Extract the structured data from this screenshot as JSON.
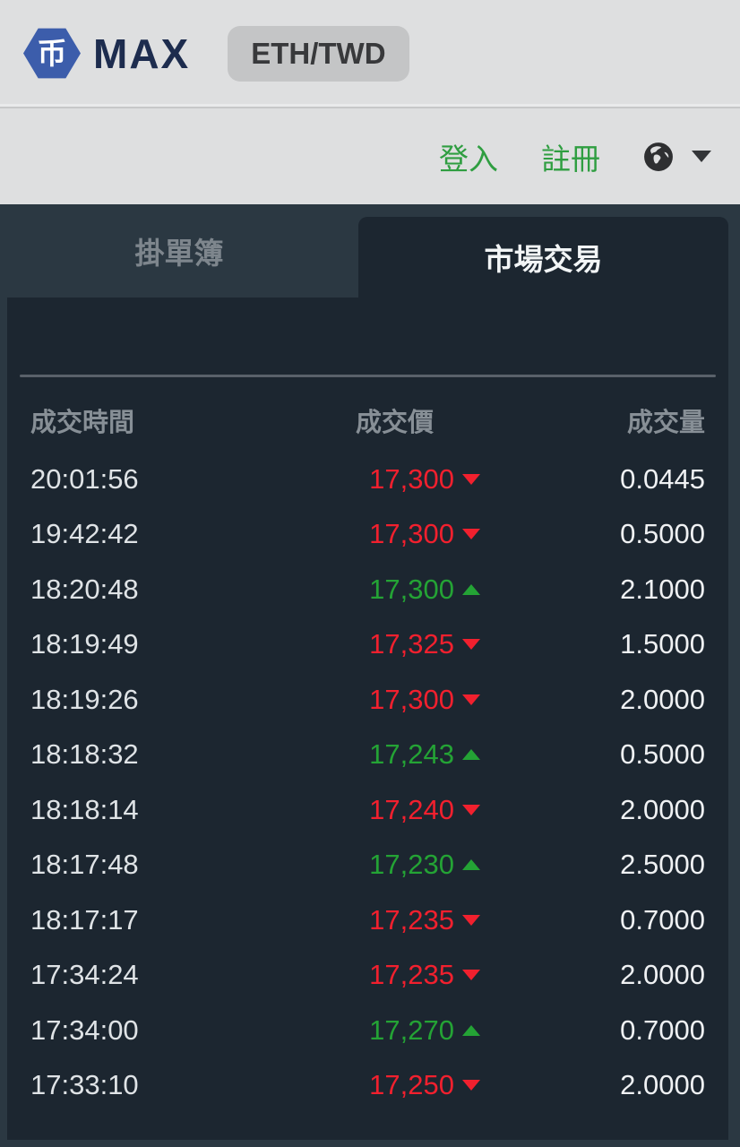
{
  "header": {
    "brand": {
      "logo_glyph": "币",
      "name": "MAX"
    },
    "pair_badge": "ETH/TWD",
    "nav": {
      "login": "登入",
      "register": "註冊"
    }
  },
  "tabs": {
    "order_book": {
      "label": "掛單簿",
      "active": false
    },
    "market_trades": {
      "label": "市場交易",
      "active": true
    }
  },
  "table": {
    "headers": {
      "time": "成交時間",
      "price": "成交價",
      "volume": "成交量"
    },
    "rows": [
      {
        "time": "20:01:56",
        "price": "17,300",
        "direction": "down",
        "volume": "0.0445"
      },
      {
        "time": "19:42:42",
        "price": "17,300",
        "direction": "down",
        "volume": "0.5000"
      },
      {
        "time": "18:20:48",
        "price": "17,300",
        "direction": "up",
        "volume": "2.1000"
      },
      {
        "time": "18:19:49",
        "price": "17,325",
        "direction": "down",
        "volume": "1.5000"
      },
      {
        "time": "18:19:26",
        "price": "17,300",
        "direction": "down",
        "volume": "2.0000"
      },
      {
        "time": "18:18:32",
        "price": "17,243",
        "direction": "up",
        "volume": "0.5000"
      },
      {
        "time": "18:18:14",
        "price": "17,240",
        "direction": "down",
        "volume": "2.0000"
      },
      {
        "time": "18:17:48",
        "price": "17,230",
        "direction": "up",
        "volume": "2.5000"
      },
      {
        "time": "18:17:17",
        "price": "17,235",
        "direction": "down",
        "volume": "0.7000"
      },
      {
        "time": "17:34:24",
        "price": "17,235",
        "direction": "down",
        "volume": "2.0000"
      },
      {
        "time": "17:34:00",
        "price": "17,270",
        "direction": "up",
        "volume": "0.7000"
      },
      {
        "time": "17:33:10",
        "price": "17,250",
        "direction": "down",
        "volume": "2.0000"
      }
    ]
  },
  "colors": {
    "accent_green": "#2f9e41",
    "price_up_green": "#24a335",
    "price_down_red": "#f1202e",
    "panel_dark": "#1c2630",
    "section_dark": "#2b3842",
    "header_gray": "#dedfe0",
    "brand_navy": "#1d2c4e",
    "logo_blue": "#3c5dab"
  }
}
